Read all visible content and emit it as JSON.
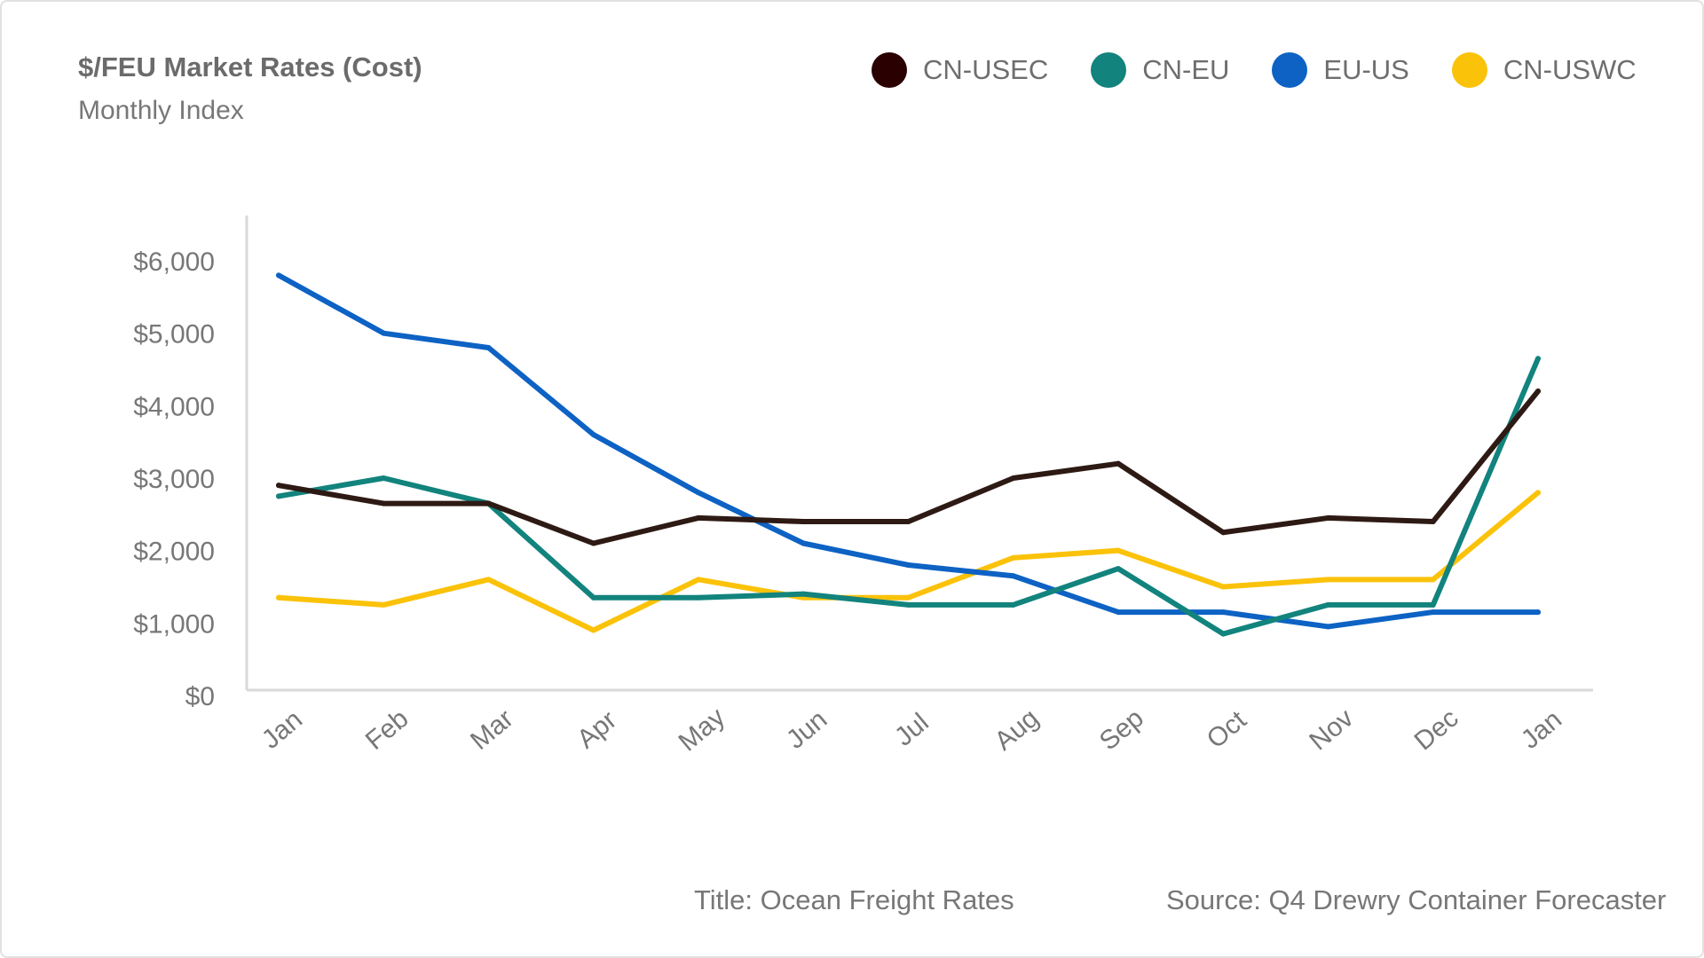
{
  "header": {
    "title": "$/FEU Market Rates (Cost)",
    "subtitle": "Monthly Index"
  },
  "footer": {
    "title": "Title: Ocean Freight Rates",
    "source": "Source: Q4 Drewry Container Forecaster"
  },
  "chart_data": {
    "type": "line",
    "title": "$/FEU Market Rates (Cost)",
    "subtitle": "Monthly Index",
    "xlabel": "",
    "ylabel": "",
    "categories": [
      "Jan",
      "Feb",
      "Mar",
      "Apr",
      "May",
      "Jun",
      "Jul",
      "Aug",
      "Sep",
      "Oct",
      "Nov",
      "Dec",
      "Jan"
    ],
    "ylim": [
      0,
      6500
    ],
    "yticks": [
      0,
      1000,
      2000,
      3000,
      4000,
      5000,
      6000
    ],
    "ytick_labels": [
      "$0",
      "$1,000",
      "$2,000",
      "$3,000",
      "$4,000",
      "$5,000",
      "$6,000"
    ],
    "grid": false,
    "legend_position": "top-right",
    "series": [
      {
        "name": "CN-USEC",
        "color": "#2e1a14",
        "legend_color": "#2a0000",
        "values": [
          2900,
          2650,
          2650,
          2100,
          2450,
          2400,
          2400,
          3000,
          3200,
          2250,
          2450,
          2400,
          4200
        ]
      },
      {
        "name": "CN-EU",
        "color": "#12837d",
        "legend_color": "#12837d",
        "values": [
          2750,
          3000,
          2650,
          1350,
          1350,
          1400,
          1250,
          1250,
          1750,
          850,
          1250,
          1250,
          4650
        ]
      },
      {
        "name": "EU-US",
        "color": "#0d62c4",
        "legend_color": "#0d62c4",
        "values": [
          5800,
          5000,
          4800,
          3600,
          2800,
          2100,
          1800,
          1650,
          1150,
          1150,
          950,
          1150,
          1150
        ]
      },
      {
        "name": "CN-USWC",
        "color": "#fbc20a",
        "legend_color": "#fbc20a",
        "values": [
          1350,
          1250,
          1600,
          900,
          1600,
          1350,
          1350,
          1900,
          2000,
          1500,
          1600,
          1600,
          2800
        ]
      }
    ]
  }
}
